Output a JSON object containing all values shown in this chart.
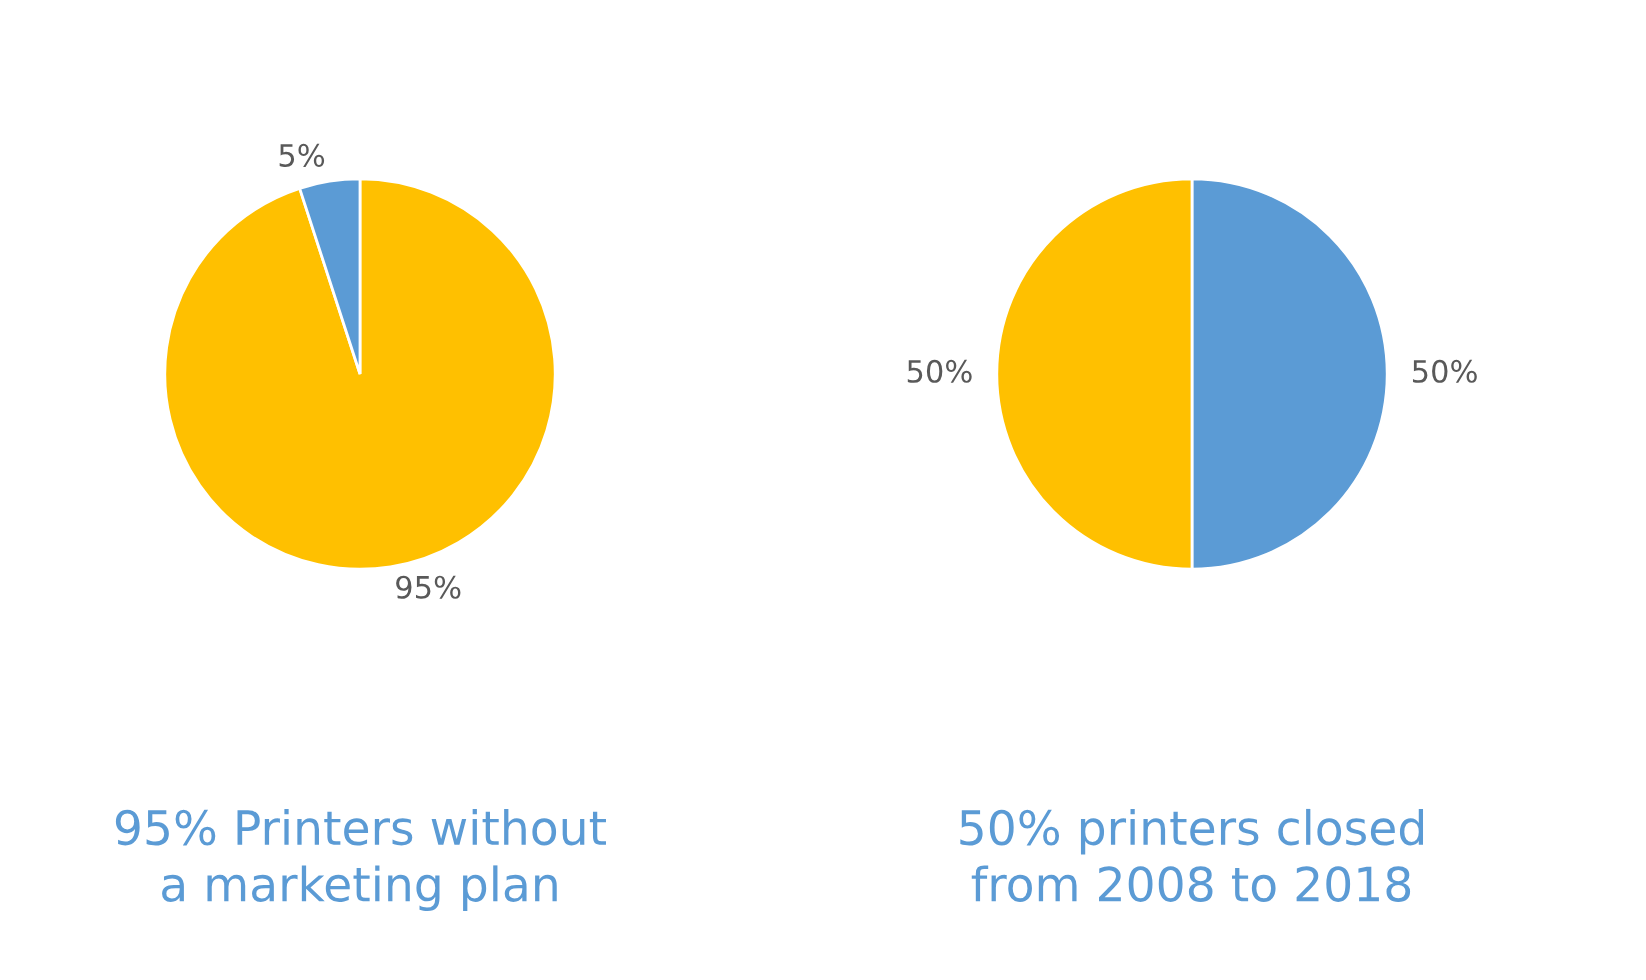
{
  "chart_data": [
    {
      "type": "pie",
      "title": "95% Printers without\na marketing plan",
      "categories": [
        null,
        null
      ],
      "values": [
        95,
        5
      ],
      "colors": [
        "#ffc000",
        "#5b9bd5"
      ],
      "value_labels": [
        "95%",
        "5%"
      ]
    },
    {
      "type": "pie",
      "title": "50% printers closed\nfrom 2008 to 2018",
      "categories": [
        null,
        null
      ],
      "values": [
        50,
        50
      ],
      "colors": [
        "#5b9bd5",
        "#ffc000"
      ],
      "value_labels": [
        "50%",
        "50%"
      ]
    }
  ]
}
